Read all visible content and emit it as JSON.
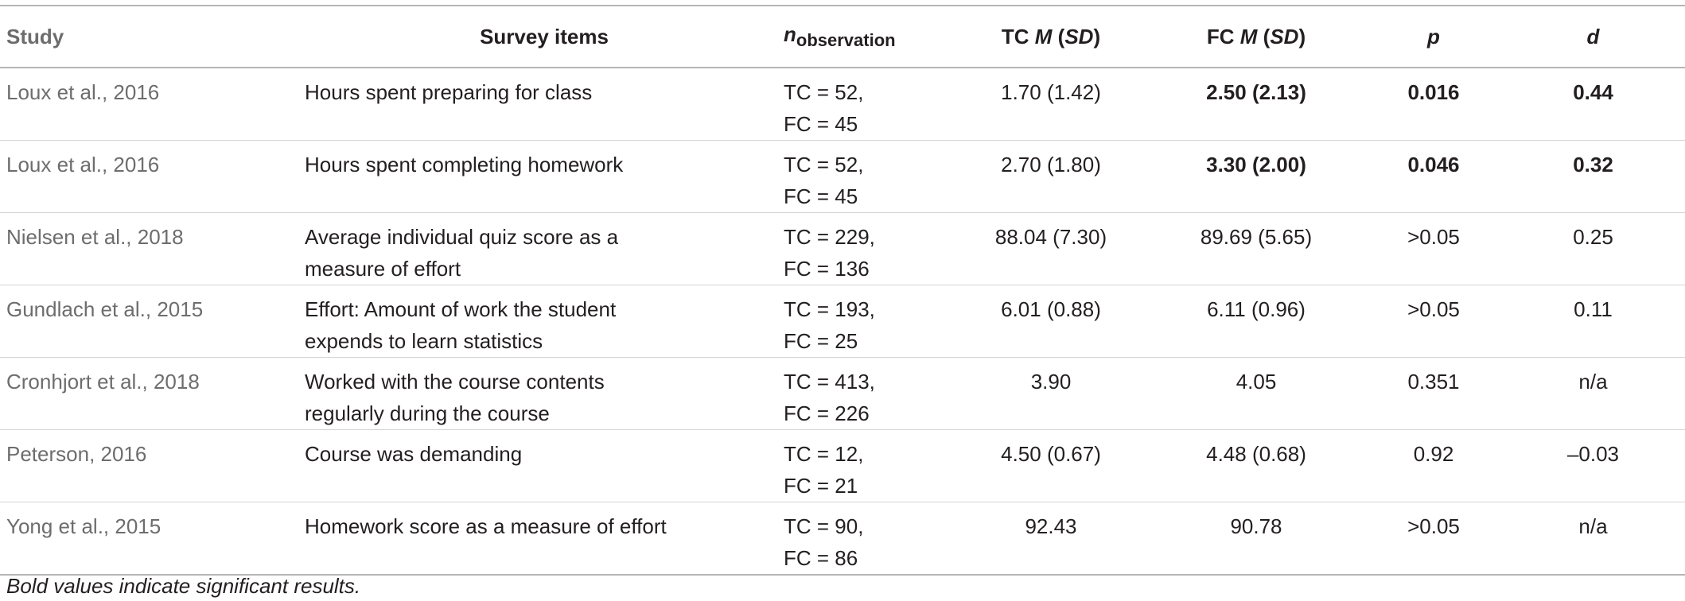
{
  "headers": {
    "study": "Study",
    "items": "Survey items",
    "n_main": "n",
    "n_sub": "observation",
    "tc_prefix": "TC ",
    "tc_m": "M",
    "tc_sd": "SD",
    "fc_prefix": "FC ",
    "fc_m": "M",
    "fc_sd": "SD",
    "p": "p",
    "d": "d"
  },
  "rows": [
    {
      "study": "Loux et al., 2016",
      "item": "Hours spent preparing for class",
      "n_tc": "TC = 52,",
      "n_fc": "FC = 45",
      "tc": "1.70 (1.42)",
      "fc": "2.50 (2.13)",
      "p": "0.016",
      "d": "0.44",
      "significant": true
    },
    {
      "study": "Loux et al., 2016",
      "item": "Hours spent completing homework",
      "n_tc": "TC = 52,",
      "n_fc": "FC = 45",
      "tc": "2.70 (1.80)",
      "fc": "3.30 (2.00)",
      "p": "0.046",
      "d": "0.32",
      "significant": true
    },
    {
      "study": "Nielsen et al., 2018",
      "item_l1": "Average individual quiz score as a",
      "item_l2": "measure of effort",
      "n_tc": "TC = 229,",
      "n_fc": "FC = 136",
      "tc": "88.04 (7.30)",
      "fc": "89.69 (5.65)",
      "p": ">0.05",
      "d": "0.25",
      "significant": false
    },
    {
      "study": "Gundlach et al., 2015",
      "item_l1": "Effort: Amount of work the student",
      "item_l2": "expends to learn statistics",
      "n_tc": "TC = 193,",
      "n_fc": "FC = 25",
      "tc": "6.01 (0.88)",
      "fc": "6.11 (0.96)",
      "p": ">0.05",
      "d": "0.11",
      "significant": false
    },
    {
      "study": "Cronhjort et al., 2018",
      "item_l1": "Worked with the course contents",
      "item_l2": "regularly during the course",
      "n_tc": "TC = 413,",
      "n_fc": "FC = 226",
      "tc": "3.90",
      "fc": "4.05",
      "p": "0.351",
      "d": "n/a",
      "significant": false
    },
    {
      "study": "Peterson, 2016",
      "item": "Course was demanding",
      "n_tc": "TC = 12,",
      "n_fc": "FC = 21",
      "tc": "4.50 (0.67)",
      "fc": "4.48 (0.68)",
      "p": "0.92",
      "d": "–0.03",
      "significant": false
    },
    {
      "study": "Yong et al., 2015",
      "item": "Homework score as a measure of effort",
      "n_tc": "TC = 90,",
      "n_fc": "FC = 86",
      "tc": "92.43",
      "fc": "90.78",
      "p": ">0.05",
      "d": "n/a",
      "significant": false
    }
  ],
  "footnote": "Bold values indicate significant results."
}
